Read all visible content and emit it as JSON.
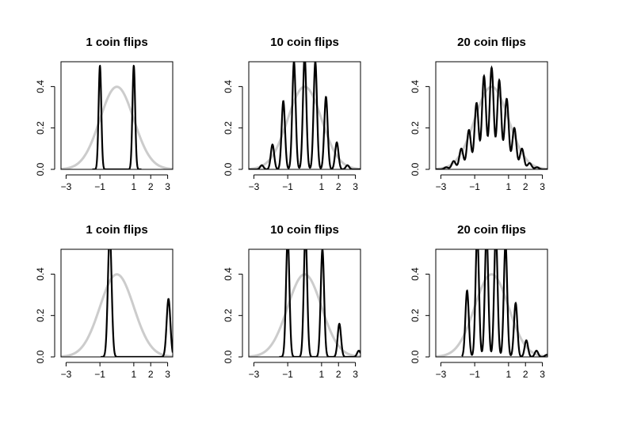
{
  "chart_data": [
    {
      "type": "line",
      "title": "1 coin flips",
      "xlim": [
        -3.3,
        3.3
      ],
      "ylim": [
        0,
        0.52
      ],
      "x_ticks": [
        -3,
        -1,
        1,
        2,
        3
      ],
      "x_tick_labels": [
        "−3",
        "−1",
        "1",
        "2",
        "3"
      ],
      "y_ticks": [
        0.0,
        0.2,
        0.4
      ],
      "y_tick_labels": [
        "0.0",
        "0.2",
        "0.4"
      ],
      "reference": {
        "type": "normal",
        "mean": 0,
        "sd": 1,
        "color": "#cccccc"
      },
      "series": [
        {
          "color": "#000000",
          "bw": 0.08,
          "range": [
            -1.45,
            1.45
          ],
          "peaks": [
            [
              -1,
              0.5
            ],
            [
              1,
              0.5
            ]
          ]
        }
      ]
    },
    {
      "type": "line",
      "title": "10 coin flips",
      "xlim": [
        -3.3,
        3.3
      ],
      "ylim": [
        0,
        0.52
      ],
      "x_ticks": [
        -3,
        -1,
        1,
        2,
        3
      ],
      "x_tick_labels": [
        "−3",
        "−1",
        "1",
        "2",
        "3"
      ],
      "y_ticks": [
        0.0,
        0.2,
        0.4
      ],
      "y_tick_labels": [
        "0.0",
        "0.2",
        "0.4"
      ],
      "reference": {
        "type": "normal",
        "mean": 0,
        "sd": 1,
        "color": "#cccccc"
      },
      "series": [
        {
          "color": "#000000",
          "bw": 0.1,
          "range": [
            -3.3,
            3.3
          ],
          "peaks": [
            [
              -2.53,
              0.02
            ],
            [
              -1.9,
              0.12
            ],
            [
              -1.26,
              0.33
            ],
            [
              -0.63,
              0.52
            ],
            [
              0.0,
              0.55
            ],
            [
              0.63,
              0.52
            ],
            [
              1.26,
              0.35
            ],
            [
              1.9,
              0.13
            ],
            [
              2.53,
              0.02
            ]
          ]
        }
      ]
    },
    {
      "type": "line",
      "title": "20 coin flips",
      "xlim": [
        -3.3,
        3.3
      ],
      "ylim": [
        0,
        0.52
      ],
      "x_ticks": [
        -3,
        -1,
        1,
        2,
        3
      ],
      "x_tick_labels": [
        "−3",
        "−1",
        "1",
        "2",
        "3"
      ],
      "y_ticks": [
        0.0,
        0.2,
        0.4
      ],
      "y_tick_labels": [
        "0.0",
        "0.2",
        "0.4"
      ],
      "reference": {
        "type": "normal",
        "mean": 0,
        "sd": 1,
        "color": "#cccccc"
      },
      "series": [
        {
          "color": "#000000",
          "bw": 0.12,
          "range": [
            -3.3,
            3.3
          ],
          "peaks": [
            [
              -2.68,
              0.01
            ],
            [
              -2.24,
              0.04
            ],
            [
              -1.79,
              0.1
            ],
            [
              -1.34,
              0.19
            ],
            [
              -0.89,
              0.32
            ],
            [
              -0.45,
              0.45
            ],
            [
              0.0,
              0.49
            ],
            [
              0.45,
              0.43
            ],
            [
              0.89,
              0.34
            ],
            [
              1.34,
              0.2
            ],
            [
              1.79,
              0.1
            ],
            [
              2.24,
              0.03
            ],
            [
              2.68,
              0.01
            ]
          ]
        }
      ]
    },
    {
      "type": "line",
      "title": "1 coin flips",
      "xlim": [
        -3.3,
        3.3
      ],
      "ylim": [
        0,
        0.52
      ],
      "x_ticks": [
        -3,
        -1,
        1,
        2,
        3
      ],
      "x_tick_labels": [
        "−3",
        "−1",
        "1",
        "2",
        "3"
      ],
      "y_ticks": [
        0.0,
        0.2,
        0.4
      ],
      "y_tick_labels": [
        "0.0",
        "0.2",
        "0.4"
      ],
      "reference": {
        "type": "normal",
        "mean": 0,
        "sd": 1,
        "color": "#cccccc"
      },
      "series": [
        {
          "color": "#000000",
          "bw": 0.11,
          "range": [
            -0.95,
            3.3
          ],
          "peaks": [
            [
              -0.42,
              0.6
            ],
            [
              3.05,
              0.28
            ]
          ]
        }
      ]
    },
    {
      "type": "line",
      "title": "10 coin flips",
      "xlim": [
        -3.3,
        3.3
      ],
      "ylim": [
        0,
        0.52
      ],
      "x_ticks": [
        -3,
        -1,
        1,
        2,
        3
      ],
      "x_tick_labels": [
        "−3",
        "−1",
        "1",
        "2",
        "3"
      ],
      "y_ticks": [
        0.0,
        0.2,
        0.4
      ],
      "y_tick_labels": [
        "0.0",
        "0.2",
        "0.4"
      ],
      "reference": {
        "type": "normal",
        "mean": 0,
        "sd": 1,
        "color": "#cccccc"
      },
      "series": [
        {
          "color": "#000000",
          "bw": 0.1,
          "range": [
            -1.5,
            3.3
          ],
          "peaks": [
            [
              -1.0,
              0.58
            ],
            [
              0.05,
              0.6
            ],
            [
              1.05,
              0.52
            ],
            [
              2.05,
              0.16
            ],
            [
              3.2,
              0.03
            ]
          ]
        }
      ]
    },
    {
      "type": "line",
      "title": "20 coin flips",
      "xlim": [
        -3.3,
        3.3
      ],
      "ylim": [
        0,
        0.52
      ],
      "x_ticks": [
        -3,
        -1,
        1,
        2,
        3
      ],
      "x_tick_labels": [
        "−3",
        "−1",
        "1",
        "2",
        "3"
      ],
      "y_ticks": [
        0.0,
        0.2,
        0.4
      ],
      "y_tick_labels": [
        "0.0",
        "0.2",
        "0.4"
      ],
      "reference": {
        "type": "normal",
        "mean": 0,
        "sd": 1,
        "color": "#cccccc"
      },
      "series": [
        {
          "color": "#000000",
          "bw": 0.1,
          "range": [
            -1.75,
            3.3
          ],
          "peaks": [
            [
              -1.45,
              0.32
            ],
            [
              -0.85,
              0.6
            ],
            [
              -0.3,
              0.6
            ],
            [
              0.25,
              0.6
            ],
            [
              0.82,
              0.55
            ],
            [
              1.42,
              0.26
            ],
            [
              2.05,
              0.08
            ],
            [
              2.65,
              0.03
            ],
            [
              3.25,
              0.01
            ]
          ]
        }
      ]
    }
  ]
}
